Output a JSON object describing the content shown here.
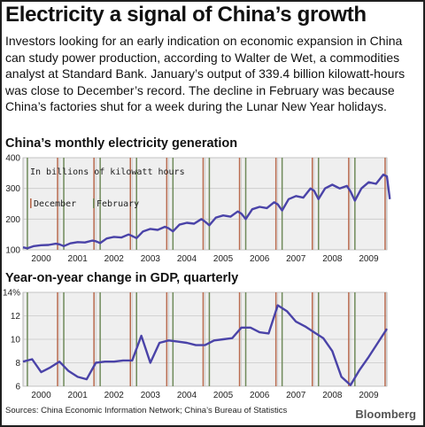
{
  "title": "Electricity a signal of China’s growth",
  "intro": "Investors looking for an early indication on economic expansion in China can study power production, according to Walter de Wet, a commodities analyst at Standard Bank. January’s output of 339.4 billion kilowatt-hours was close to December’s record. The decline in February was because China’s factories shut for a week during the Lunar New Year holidays.",
  "source": "Sources: China Economic Information Network; China’s Bureau of Statistics",
  "brand": "Bloomberg",
  "colors": {
    "background": "#ffffff",
    "plot_background": "#efefef",
    "line": "#4a43a8",
    "december_marker": "#b86a4e",
    "february_marker": "#6f8a5a",
    "gridline": "#c8c8c8"
  },
  "chart_data": [
    {
      "type": "line",
      "title": "China’s monthly electricity generation",
      "units_note": "In billions of kilowatt hours",
      "legend": [
        {
          "label": "December",
          "color": "#b86a4e"
        },
        {
          "label": "February",
          "color": "#6f8a5a"
        }
      ],
      "x_tick_labels": [
        "2000",
        "2001",
        "2002",
        "2003",
        "2004",
        "2005",
        "2006",
        "2007",
        "2008",
        "2009"
      ],
      "x_range": [
        2000,
        2010
      ],
      "y_ticks": [
        100,
        200,
        300,
        400
      ],
      "ylim": [
        100,
        400
      ],
      "grid": true,
      "december_markers": [
        2000.95,
        2001.95,
        2002.95,
        2003.95,
        2004.95,
        2005.95,
        2006.95,
        2007.95,
        2008.95,
        2009.95
      ],
      "february_markers": [
        2000.12,
        2001.12,
        2002.12,
        2003.12,
        2004.12,
        2005.12,
        2006.12,
        2007.12,
        2008.12,
        2009.12
      ],
      "series": [
        {
          "x": [
            2000.0,
            2000.12,
            2000.3,
            2000.5,
            2000.7,
            2000.9,
            2001.0,
            2001.12,
            2001.3,
            2001.5,
            2001.7,
            2001.9,
            2002.0,
            2002.12,
            2002.3,
            2002.5,
            2002.7,
            2002.9,
            2003.0,
            2003.12,
            2003.3,
            2003.5,
            2003.7,
            2003.9,
            2004.0,
            2004.12,
            2004.3,
            2004.5,
            2004.7,
            2004.9,
            2005.0,
            2005.12,
            2005.3,
            2005.5,
            2005.7,
            2005.9,
            2006.0,
            2006.12,
            2006.3,
            2006.5,
            2006.7,
            2006.9,
            2007.0,
            2007.12,
            2007.3,
            2007.5,
            2007.7,
            2007.9,
            2008.0,
            2008.12,
            2008.3,
            2008.5,
            2008.7,
            2008.9,
            2009.0,
            2009.12,
            2009.3,
            2009.5,
            2009.7,
            2009.9,
            2010.0,
            2010.08
          ],
          "y": [
            108,
            105,
            112,
            115,
            116,
            120,
            118,
            112,
            121,
            125,
            124,
            130,
            128,
            122,
            137,
            142,
            140,
            150,
            145,
            138,
            160,
            168,
            165,
            175,
            170,
            160,
            182,
            188,
            185,
            200,
            192,
            180,
            205,
            212,
            208,
            225,
            218,
            200,
            232,
            240,
            236,
            255,
            248,
            228,
            265,
            275,
            270,
            300,
            292,
            265,
            300,
            312,
            300,
            308,
            290,
            260,
            300,
            320,
            315,
            345,
            339,
            265
          ]
        }
      ]
    },
    {
      "type": "line",
      "title": "Year-on-year change in GDP, quarterly",
      "x_tick_labels": [
        "2000",
        "2001",
        "2002",
        "2003",
        "2004",
        "2005",
        "2006",
        "2007",
        "2008",
        "2009"
      ],
      "x_range": [
        2000,
        2010
      ],
      "y_ticks": [
        6,
        8,
        10,
        12,
        14
      ],
      "y_tick_labels": [
        "6",
        "8",
        "10",
        "12",
        "14%"
      ],
      "ylim": [
        6,
        14
      ],
      "grid": true,
      "december_markers": [
        2000.95,
        2001.95,
        2002.95,
        2003.95,
        2004.95,
        2005.95,
        2006.95,
        2007.95,
        2008.95,
        2009.95
      ],
      "february_markers": [
        2000.12,
        2001.12,
        2002.12,
        2003.12,
        2004.12,
        2005.12,
        2006.12,
        2007.12,
        2008.12,
        2009.12
      ],
      "series": [
        {
          "x": [
            2000.0,
            2000.25,
            2000.5,
            2000.75,
            2001.0,
            2001.25,
            2001.5,
            2001.75,
            2002.0,
            2002.25,
            2002.5,
            2002.75,
            2003.0,
            2003.25,
            2003.5,
            2003.75,
            2004.0,
            2004.25,
            2004.5,
            2004.75,
            2005.0,
            2005.25,
            2005.5,
            2005.75,
            2006.0,
            2006.25,
            2006.5,
            2006.75,
            2007.0,
            2007.25,
            2007.5,
            2007.75,
            2008.0,
            2008.25,
            2008.5,
            2008.75,
            2009.0,
            2009.25,
            2009.5,
            2009.75,
            2010.0
          ],
          "y": [
            8.1,
            8.3,
            7.2,
            7.6,
            8.1,
            7.3,
            6.8,
            6.6,
            8.0,
            8.1,
            8.1,
            8.2,
            8.2,
            10.3,
            8.0,
            9.7,
            9.9,
            9.8,
            9.7,
            9.5,
            9.5,
            9.9,
            10.0,
            10.1,
            11.0,
            11.0,
            10.6,
            10.5,
            12.9,
            12.4,
            11.5,
            11.1,
            10.6,
            10.1,
            9.0,
            6.8,
            6.1,
            7.4,
            8.5,
            9.7,
            10.9
          ]
        }
      ]
    }
  ]
}
